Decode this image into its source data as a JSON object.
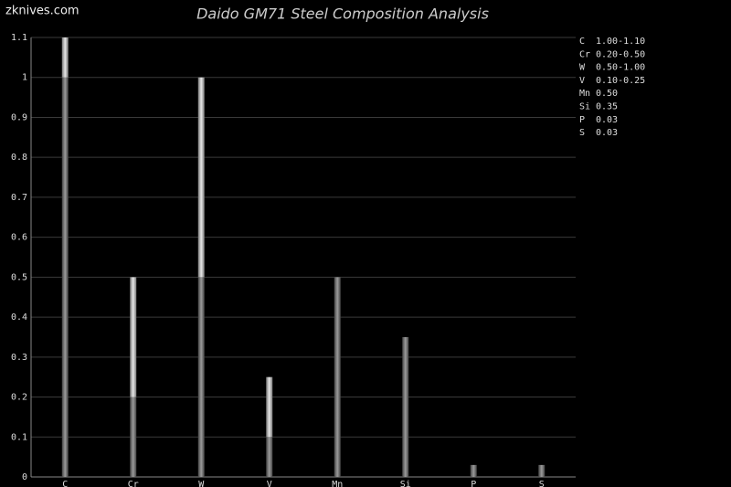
{
  "chart_data": {
    "type": "range_bar",
    "title": "Daido GM71 Steel Composition Analysis",
    "watermark": "zknives.com",
    "categories": [
      "C",
      "Cr",
      "W",
      "V",
      "Mn",
      "Si",
      "P",
      "S"
    ],
    "low": [
      1.0,
      0.2,
      0.5,
      0.1,
      null,
      null,
      null,
      null
    ],
    "high": [
      1.1,
      0.5,
      1.0,
      0.25,
      0.5,
      0.35,
      0.03,
      0.03
    ],
    "value_labels": [
      "1.00-1.10",
      "0.20-0.50",
      "0.50-1.00",
      "0.10-0.25",
      "0.50",
      "0.35",
      "0.03",
      "0.03"
    ],
    "ylim": [
      0,
      1.1
    ],
    "yticks": [
      0,
      0.1,
      0.2,
      0.3,
      0.4,
      0.5,
      0.6,
      0.7,
      0.8,
      0.9,
      1,
      1.1
    ],
    "grid": true
  }
}
